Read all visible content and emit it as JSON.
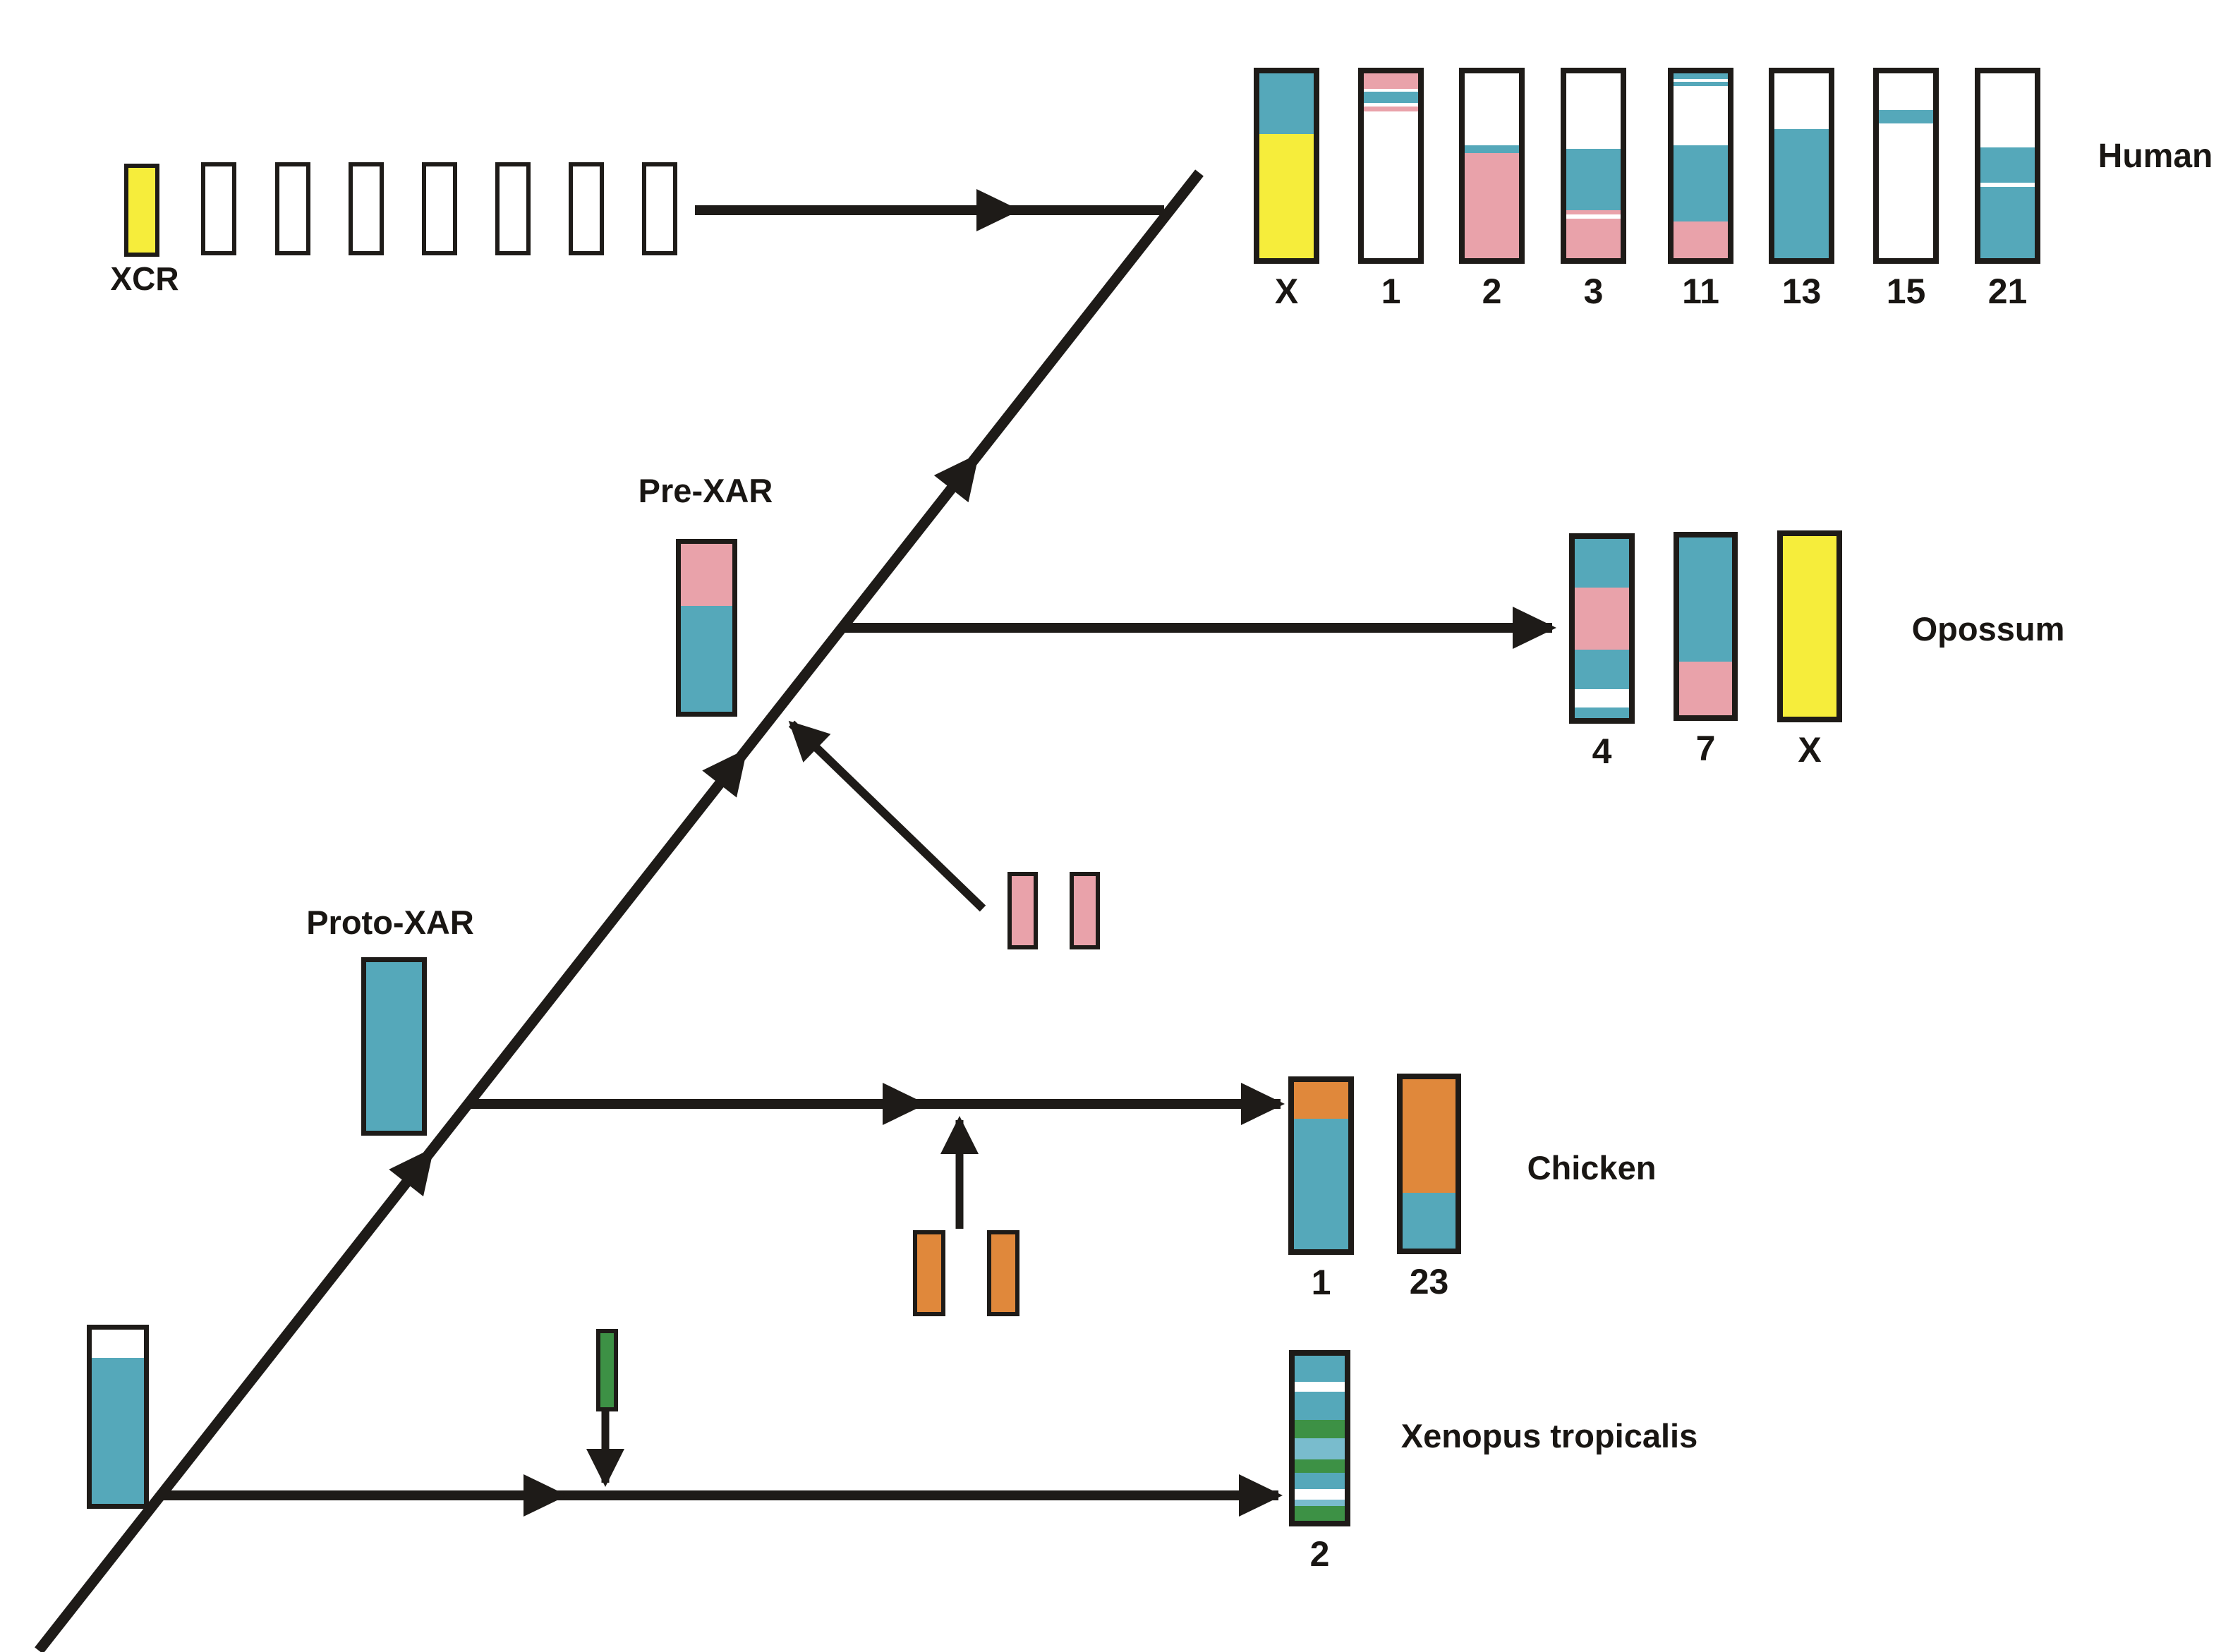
{
  "figure": {
    "description": "Phylogenetic diagram of X chromosome region (XCR / XAR) evolution mapped onto human, opossum, chicken and Xenopus tropicalis chromosomes",
    "background": "#FFFFFF"
  },
  "colors": {
    "teal": "#55A8BA",
    "teal_light": "#79BCCD",
    "yellow": "#F6ED3B",
    "pink": "#E9A2AA",
    "orange": "#E0883B",
    "green": "#3D9145",
    "white": "#FFFFFF",
    "line": "#1E1B18"
  },
  "labels": {
    "xcr": "XCR",
    "pre_xar": "Pre-XAR",
    "proto_xar": "Proto-XAR",
    "human": "Human",
    "opossum": "Opossum",
    "chicken": "Chicken",
    "xenopus": "Xenopus tropicalis"
  },
  "chromosomes": [
    {
      "id": "xcr_y",
      "group": "ancestral-xcr",
      "label": "",
      "segments": [
        {
          "c": "yellow",
          "p": 100
        }
      ]
    },
    {
      "id": "xcr_w1",
      "group": "ancestral-xcr",
      "label": "",
      "segments": [
        {
          "c": "white",
          "p": 100
        }
      ]
    },
    {
      "id": "xcr_w2",
      "group": "ancestral-xcr",
      "label": "",
      "segments": [
        {
          "c": "white",
          "p": 100
        }
      ]
    },
    {
      "id": "xcr_w3",
      "group": "ancestral-xcr",
      "label": "",
      "segments": [
        {
          "c": "white",
          "p": 100
        }
      ]
    },
    {
      "id": "xcr_w4",
      "group": "ancestral-xcr",
      "label": "",
      "segments": [
        {
          "c": "white",
          "p": 100
        }
      ]
    },
    {
      "id": "xcr_w5",
      "group": "ancestral-xcr",
      "label": "",
      "segments": [
        {
          "c": "white",
          "p": 100
        }
      ]
    },
    {
      "id": "xcr_w6",
      "group": "ancestral-xcr",
      "label": "",
      "segments": [
        {
          "c": "white",
          "p": 100
        }
      ]
    },
    {
      "id": "xcr_w7",
      "group": "ancestral-xcr",
      "label": "",
      "segments": [
        {
          "c": "white",
          "p": 100
        }
      ]
    },
    {
      "id": "h_X",
      "group": "human",
      "label": "X",
      "segments": [
        {
          "c": "teal",
          "p": 33
        },
        {
          "c": "yellow",
          "p": 67
        }
      ]
    },
    {
      "id": "h_1",
      "group": "human",
      "label": "1",
      "segments": [
        {
          "c": "pink",
          "p": 8.5
        },
        {
          "c": "white",
          "p": 1.5
        },
        {
          "c": "teal",
          "p": 6
        },
        {
          "c": "white",
          "p": 2
        },
        {
          "c": "pink",
          "p": 2.5
        },
        {
          "c": "white",
          "p": 79.5
        }
      ]
    },
    {
      "id": "h_2",
      "group": "human",
      "label": "2",
      "segments": [
        {
          "c": "white",
          "p": 39
        },
        {
          "c": "teal",
          "p": 4
        },
        {
          "c": "pink",
          "p": 57
        }
      ]
    },
    {
      "id": "h_3",
      "group": "human",
      "label": "3",
      "segments": [
        {
          "c": "white",
          "p": 41
        },
        {
          "c": "teal",
          "p": 33
        },
        {
          "c": "pink",
          "p": 2.5
        },
        {
          "c": "white",
          "p": 2
        },
        {
          "c": "pink",
          "p": 21.5
        }
      ]
    },
    {
      "id": "h_11",
      "group": "human",
      "label": "11",
      "segments": [
        {
          "c": "teal",
          "p": 3
        },
        {
          "c": "white",
          "p": 1.5
        },
        {
          "c": "teal",
          "p": 2.5
        },
        {
          "c": "white",
          "p": 32
        },
        {
          "c": "teal",
          "p": 41
        },
        {
          "c": "pink",
          "p": 20
        }
      ]
    },
    {
      "id": "h_13",
      "group": "human",
      "label": "13",
      "segments": [
        {
          "c": "white",
          "p": 30
        },
        {
          "c": "teal",
          "p": 70
        }
      ]
    },
    {
      "id": "h_15",
      "group": "human",
      "label": "15",
      "segments": [
        {
          "c": "white",
          "p": 20
        },
        {
          "c": "teal",
          "p": 7
        },
        {
          "c": "white",
          "p": 73
        }
      ]
    },
    {
      "id": "h_21",
      "group": "human",
      "label": "21",
      "segments": [
        {
          "c": "white",
          "p": 40
        },
        {
          "c": "teal",
          "p": 19
        },
        {
          "c": "white",
          "p": 2.5
        },
        {
          "c": "teal",
          "p": 38.5
        }
      ]
    },
    {
      "id": "o_4",
      "group": "opossum",
      "label": "4",
      "segments": [
        {
          "c": "teal",
          "p": 27
        },
        {
          "c": "pink",
          "p": 35
        },
        {
          "c": "teal",
          "p": 22
        },
        {
          "c": "white",
          "p": 10
        },
        {
          "c": "teal",
          "p": 6
        }
      ]
    },
    {
      "id": "o_7",
      "group": "opossum",
      "label": "7",
      "segments": [
        {
          "c": "teal",
          "p": 70
        },
        {
          "c": "pink",
          "p": 30
        }
      ]
    },
    {
      "id": "o_X",
      "group": "opossum",
      "label": "X",
      "segments": [
        {
          "c": "yellow",
          "p": 100
        }
      ]
    },
    {
      "id": "c_1",
      "group": "chicken",
      "label": "1",
      "segments": [
        {
          "c": "orange",
          "p": 22
        },
        {
          "c": "teal",
          "p": 78
        }
      ]
    },
    {
      "id": "c_23",
      "group": "chicken",
      "label": "23",
      "segments": [
        {
          "c": "orange",
          "p": 67
        },
        {
          "c": "teal",
          "p": 33
        }
      ]
    },
    {
      "id": "x_2",
      "group": "xenopus",
      "label": "2",
      "segments": [
        {
          "c": "teal",
          "p": 16
        },
        {
          "c": "white",
          "p": 6
        },
        {
          "c": "teal",
          "p": 17
        },
        {
          "c": "green",
          "p": 11
        },
        {
          "c": "teal_light",
          "p": 13
        },
        {
          "c": "green",
          "p": 8
        },
        {
          "c": "teal",
          "p": 10
        },
        {
          "c": "white",
          "p": 6
        },
        {
          "c": "teal_light",
          "p": 4
        },
        {
          "c": "green",
          "p": 9
        }
      ]
    },
    {
      "id": "pre_xar",
      "group": "ancestor",
      "label": "",
      "segments": [
        {
          "c": "pink",
          "p": 37
        },
        {
          "c": "teal",
          "p": 63
        }
      ]
    },
    {
      "id": "proto_xar",
      "group": "ancestor",
      "label": "",
      "segments": [
        {
          "c": "teal",
          "p": 100
        }
      ]
    },
    {
      "id": "stem",
      "group": "ancestor",
      "label": "",
      "segments": [
        {
          "c": "white",
          "p": 16
        },
        {
          "c": "teal",
          "p": 84
        }
      ]
    },
    {
      "id": "green_add",
      "group": "added-material",
      "label": "",
      "segments": [
        {
          "c": "green",
          "p": 100
        }
      ]
    },
    {
      "id": "orange_add1",
      "group": "added-material",
      "label": "",
      "segments": [
        {
          "c": "orange",
          "p": 100
        }
      ]
    },
    {
      "id": "orange_add2",
      "group": "added-material",
      "label": "",
      "segments": [
        {
          "c": "orange",
          "p": 100
        }
      ]
    },
    {
      "id": "pink_add1",
      "group": "added-material",
      "label": "",
      "segments": [
        {
          "c": "pink",
          "p": 100
        }
      ]
    },
    {
      "id": "pink_add2",
      "group": "added-material",
      "label": "",
      "segments": [
        {
          "c": "pink",
          "p": 100
        }
      ]
    }
  ]
}
